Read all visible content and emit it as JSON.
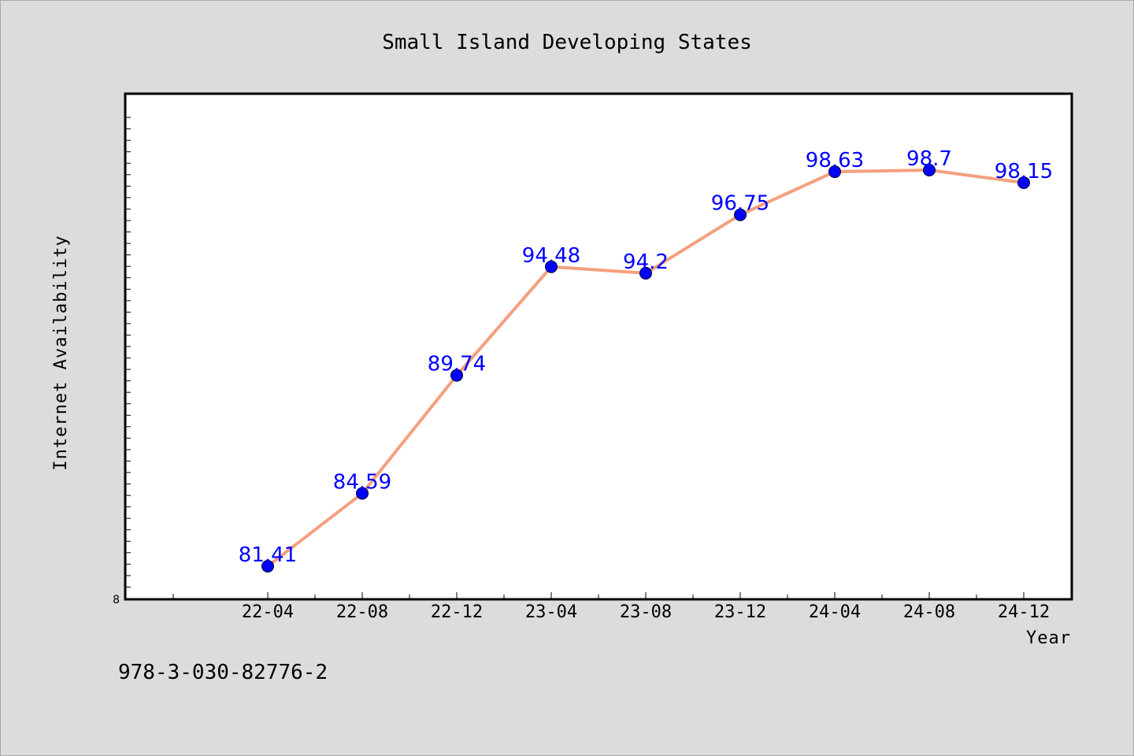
{
  "chart_data": {
    "type": "line",
    "title": "Small Island Developing States",
    "xlabel": "Year",
    "ylabel": "Internet Availability",
    "categories": [
      "22-04",
      "22-08",
      "22-12",
      "23-04",
      "23-08",
      "23-12",
      "24-04",
      "24-08",
      "24-12"
    ],
    "series": [
      {
        "values": [
          81.41,
          84.59,
          89.74,
          94.48,
          94.2,
          96.75,
          98.63,
          98.7,
          98.15
        ],
        "color": "#f4a07e",
        "marker_color": "#0000ff"
      }
    ],
    "data_labels": [
      "81.41",
      "84.59",
      "89.74",
      "94.48",
      "94.2",
      "96.75",
      "98.63",
      "98.7",
      "98.15"
    ],
    "ylim": [
      80,
      102
    ],
    "y_tick_label": "8",
    "grid": false,
    "legend": "none"
  },
  "footnote": "978-3-030-82776-2"
}
